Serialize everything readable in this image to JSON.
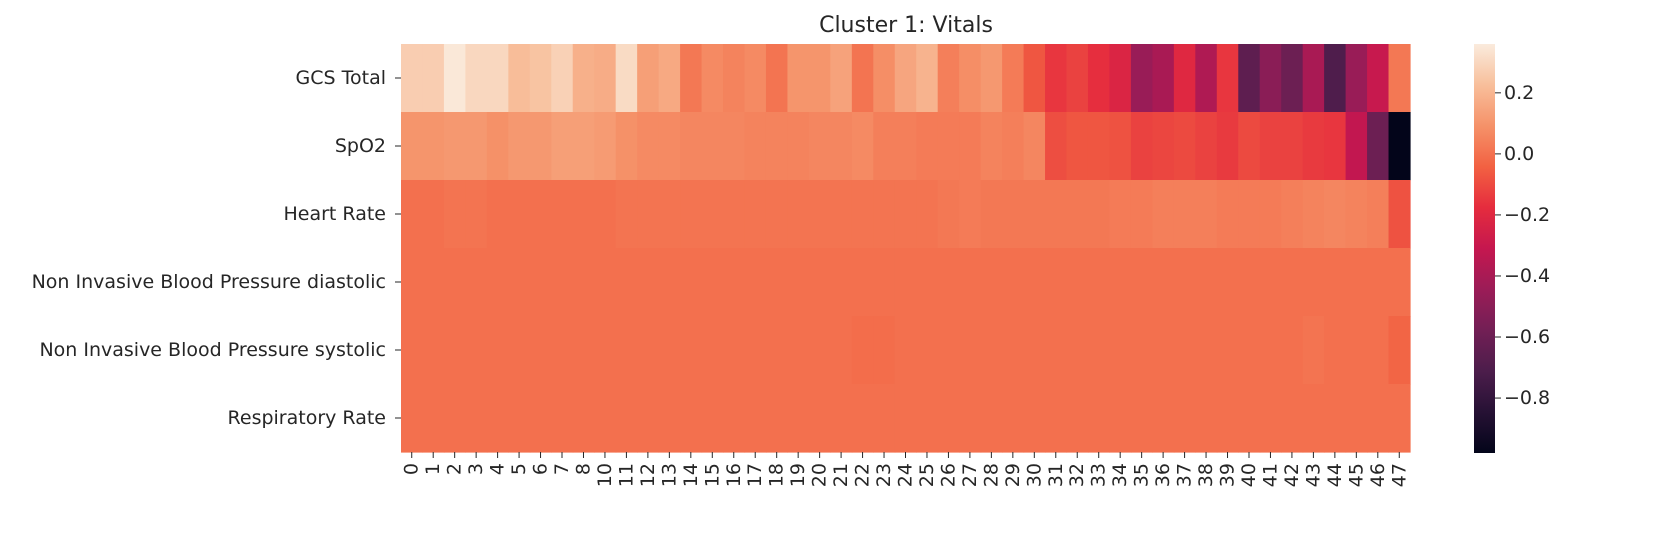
{
  "chart_data": {
    "type": "heatmap",
    "title": "Cluster 1: Vitals",
    "xlabel": "",
    "ylabel": "",
    "rows": [
      "GCS Total",
      "SpO2",
      "Heart Rate",
      "Non Invasive Blood Pressure diastolic",
      "Non Invasive Blood Pressure systolic",
      "Respiratory Rate"
    ],
    "columns": [
      "0",
      "1",
      "2",
      "3",
      "4",
      "5",
      "6",
      "7",
      "8",
      "10",
      "11",
      "12",
      "13",
      "14",
      "15",
      "16",
      "17",
      "18",
      "19",
      "20",
      "21",
      "22",
      "23",
      "24",
      "25",
      "26",
      "27",
      "28",
      "29",
      "30",
      "31",
      "32",
      "33",
      "34",
      "35",
      "36",
      "37",
      "38",
      "39",
      "40",
      "41",
      "42",
      "43",
      "44",
      "45",
      "46",
      "47"
    ],
    "values": [
      [
        0.27,
        0.27,
        0.35,
        0.3,
        0.3,
        0.22,
        0.24,
        0.28,
        0.18,
        0.17,
        0.31,
        0.13,
        0.16,
        0.02,
        0.07,
        0.05,
        0.07,
        0.01,
        0.1,
        0.1,
        0.14,
        0.01,
        0.08,
        0.15,
        0.19,
        0.04,
        0.08,
        0.11,
        0.03,
        -0.07,
        -0.15,
        -0.12,
        -0.17,
        -0.22,
        -0.45,
        -0.4,
        -0.2,
        -0.38,
        -0.15,
        -0.65,
        -0.5,
        -0.6,
        -0.4,
        -0.7,
        -0.45,
        -0.3,
        0.02
      ],
      [
        0.1,
        0.1,
        0.11,
        0.11,
        0.09,
        0.11,
        0.11,
        0.13,
        0.13,
        0.12,
        0.09,
        0.07,
        0.07,
        0.06,
        0.06,
        0.06,
        0.05,
        0.05,
        0.05,
        0.06,
        0.06,
        0.07,
        0.04,
        0.04,
        0.03,
        0.03,
        0.03,
        0.05,
        0.04,
        0.06,
        -0.09,
        -0.07,
        -0.07,
        -0.08,
        -0.12,
        -0.11,
        -0.1,
        -0.12,
        -0.14,
        -0.1,
        -0.12,
        -0.12,
        -0.14,
        -0.15,
        -0.32,
        -0.6,
        -0.98
      ],
      [
        0.0,
        0.0,
        0.01,
        0.01,
        0.0,
        0.0,
        0.0,
        0.0,
        0.0,
        0.0,
        0.01,
        0.01,
        0.01,
        0.01,
        0.01,
        0.01,
        0.01,
        0.01,
        0.01,
        0.01,
        0.01,
        0.01,
        0.01,
        0.01,
        0.01,
        0.02,
        0.03,
        0.02,
        0.02,
        0.02,
        0.02,
        0.02,
        0.02,
        0.03,
        0.03,
        0.04,
        0.04,
        0.04,
        0.03,
        0.03,
        0.03,
        0.04,
        0.05,
        0.06,
        0.05,
        0.04,
        -0.08
      ],
      [
        0.0,
        0.0,
        0.0,
        0.0,
        0.0,
        0.0,
        0.0,
        0.0,
        0.0,
        0.0,
        0.0,
        0.0,
        0.0,
        0.0,
        0.0,
        0.0,
        0.0,
        0.0,
        0.0,
        0.0,
        0.0,
        0.0,
        0.0,
        0.0,
        0.0,
        0.0,
        0.0,
        0.0,
        0.0,
        0.0,
        0.0,
        0.0,
        0.0,
        0.0,
        0.0,
        0.0,
        0.0,
        0.0,
        0.0,
        0.0,
        0.0,
        0.0,
        0.0,
        0.0,
        0.0,
        0.0,
        0.0
      ],
      [
        0.0,
        0.0,
        0.0,
        0.0,
        0.0,
        0.0,
        0.0,
        0.0,
        0.0,
        0.0,
        0.0,
        0.0,
        0.0,
        0.0,
        0.0,
        0.0,
        0.0,
        0.0,
        0.0,
        0.0,
        0.0,
        -0.01,
        -0.01,
        0.0,
        0.0,
        0.0,
        0.0,
        0.0,
        0.0,
        0.0,
        0.0,
        0.0,
        0.0,
        0.0,
        0.0,
        0.0,
        0.0,
        0.0,
        0.0,
        0.0,
        0.0,
        0.0,
        0.01,
        0.0,
        0.0,
        0.0,
        -0.03
      ],
      [
        0.0,
        0.0,
        0.0,
        0.0,
        0.0,
        0.0,
        0.0,
        0.0,
        0.0,
        0.0,
        0.0,
        0.0,
        0.0,
        0.0,
        0.0,
        0.0,
        0.0,
        0.0,
        0.0,
        0.0,
        0.0,
        0.0,
        0.0,
        0.0,
        0.0,
        0.0,
        0.0,
        0.0,
        0.0,
        0.0,
        0.0,
        0.0,
        0.0,
        0.0,
        0.0,
        0.0,
        0.0,
        0.0,
        0.0,
        0.0,
        0.0,
        0.0,
        0.0,
        0.0,
        0.0,
        0.0,
        0.0
      ]
    ],
    "vmin": -0.98,
    "vmax": 0.36,
    "colormap": "rocket",
    "colorbar": {
      "ticks": [
        0.2,
        0.0,
        -0.2,
        -0.4,
        -0.6,
        -0.8
      ],
      "tick_labels": [
        "0.2",
        "0.0",
        "−0.2",
        "−0.4",
        "−0.6",
        "−0.8"
      ]
    },
    "colors": {
      "low": "#03051a",
      "high": "#faebdd",
      "text": "#262626"
    }
  }
}
